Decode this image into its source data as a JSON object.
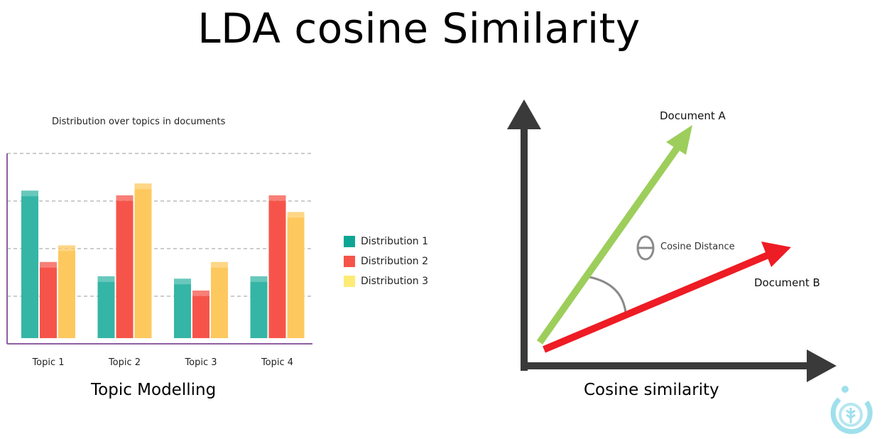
{
  "title": "LDA cosine Similarity",
  "left_panel": {
    "caption": "Topic Modelling"
  },
  "right_panel": {
    "caption": "Cosine similarity",
    "vector_a_label": "Document A",
    "vector_b_label": "Document B",
    "angle_symbol": "θ",
    "angle_label": "Cosine Distance",
    "colors": {
      "axis": "#3a3a3a",
      "vector_a": "#9dce5b",
      "vector_b": "#ee1c24",
      "angle_arc": "#8a8a8a"
    }
  },
  "chart_data": {
    "type": "bar",
    "title": "Distribution over topics in documents",
    "categories": [
      "Topic 1",
      "Topic 2",
      "Topic 3",
      "Topic 4"
    ],
    "series": [
      {
        "name": "Distribution 1",
        "color": "#35b5a5",
        "values": [
          6.2,
          2.6,
          2.5,
          2.6
        ]
      },
      {
        "name": "Distribution 2",
        "color": "#f6544a",
        "values": [
          3.2,
          6.0,
          2.0,
          6.0
        ]
      },
      {
        "name": "Distribution 3",
        "color": "#fdc85e",
        "values": [
          3.9,
          6.5,
          3.2,
          5.3
        ]
      }
    ],
    "ylim": [
      0,
      8
    ],
    "grid": true,
    "legend": "right"
  }
}
